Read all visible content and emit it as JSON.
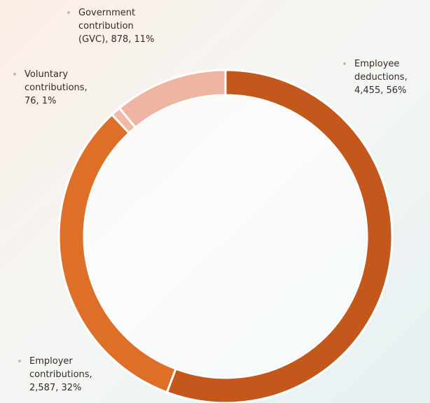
{
  "chart_data": {
    "type": "donut",
    "labels": [
      "Employee deductions, 4,455, 56%",
      "Employer contributions, 2,587, 32%",
      "Voluntary contributions, 76, 1%",
      "Government contribution (GVC), 878, 11%"
    ],
    "values": [
      4455,
      2587,
      76,
      878
    ],
    "percents": [
      56,
      32,
      1,
      11
    ],
    "colors": [
      "#c4581c",
      "#de6f28",
      "#f1b9a6",
      "#efb4a2"
    ]
  }
}
